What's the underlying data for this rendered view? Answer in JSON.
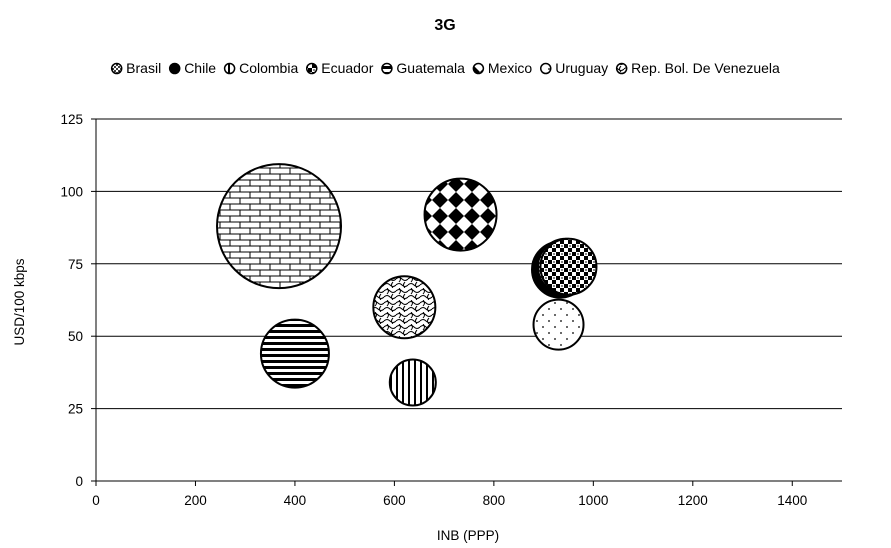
{
  "chart_data": {
    "type": "bubble",
    "title": "3G",
    "xlabel": "INB (PPP)",
    "ylabel": "USD/100 kbps",
    "xlim": [
      0,
      1500
    ],
    "ylim": [
      0,
      125
    ],
    "x_ticks": [
      0,
      200,
      400,
      600,
      800,
      1000,
      1200,
      1400
    ],
    "y_ticks": [
      0,
      25,
      50,
      75,
      100,
      125
    ],
    "x_tick_labels": [
      "0",
      "200",
      "400",
      "600",
      "800",
      "1000",
      "1200",
      "1400"
    ],
    "y_tick_labels": [
      "0",
      "25",
      "50",
      "75",
      "100",
      "125"
    ],
    "grid": "horizontal",
    "legend_position": "top",
    "series": [
      {
        "name": "Brasil",
        "x": 945,
        "y": 74,
        "size": 28,
        "pattern": "dots-dense"
      },
      {
        "name": "Chile",
        "x": 933,
        "y": 73,
        "size": 28,
        "pattern": "solid"
      },
      {
        "name": "Colombia",
        "x": 637,
        "y": 34,
        "size": 23,
        "pattern": "vertical"
      },
      {
        "name": "Ecuador",
        "x": 950,
        "y": 74,
        "size": 28,
        "pattern": "checker-small"
      },
      {
        "name": "Guatemala",
        "x": 400,
        "y": 44,
        "size": 34,
        "pattern": "horizontal"
      },
      {
        "name": "Mexico",
        "x": 733,
        "y": 92,
        "size": 36,
        "pattern": "diamond-checker"
      },
      {
        "name": "Uruguay",
        "x": 930,
        "y": 54,
        "size": 25,
        "pattern": "sparse-dots"
      },
      {
        "name": "Rep. Bol. De Venezuela",
        "x": 620,
        "y": 60,
        "size": 31,
        "pattern": "weave"
      },
      {
        "name": "",
        "x": 368,
        "y": 88,
        "size": 62,
        "pattern": "brick"
      }
    ],
    "colors": {
      "fill": "#ffffff",
      "stroke": "#000000",
      "grid": "#000000"
    }
  }
}
